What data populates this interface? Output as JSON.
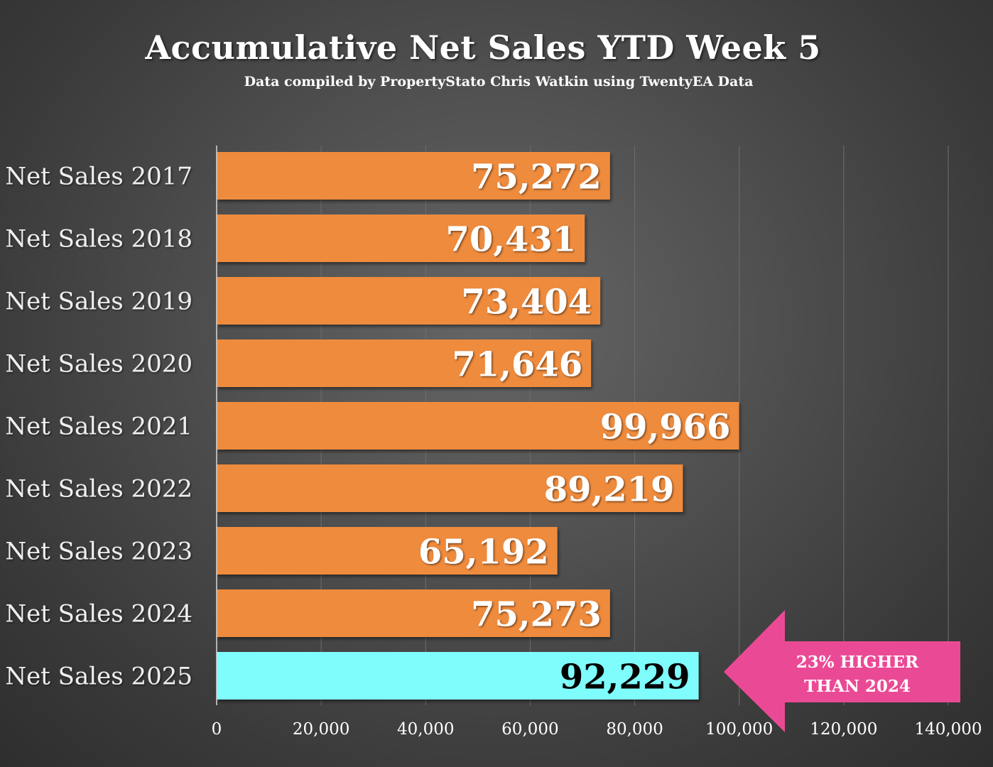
{
  "chart_data": {
    "type": "bar",
    "orientation": "horizontal",
    "title": "Accumulative Net Sales YTD Week 5",
    "subtitle": "Data compiled by PropertyStato Chris Watkin using TwentyEA Data",
    "categories": [
      "Net Sales 2017",
      "Net Sales 2018",
      "Net Sales 2019",
      "Net Sales 2020",
      "Net Sales 2021",
      "Net Sales 2022",
      "Net Sales 2023",
      "Net Sales 2024",
      "Net Sales 2025"
    ],
    "values": [
      75272,
      70431,
      73404,
      71646,
      99966,
      89219,
      65192,
      75273,
      92229
    ],
    "value_labels": [
      "75,272",
      "70,431",
      "73,404",
      "71,646",
      "99,966",
      "89,219",
      "65,192",
      "75,273",
      "92,229"
    ],
    "xlim": [
      0,
      140000
    ],
    "x_ticks": [
      0,
      20000,
      40000,
      60000,
      80000,
      100000,
      120000,
      140000
    ],
    "x_tick_labels": [
      "0",
      "20,000",
      "40,000",
      "60,000",
      "80,000",
      "100,000",
      "120,000",
      "140,000"
    ],
    "grid": true,
    "legend": "none",
    "colors": {
      "bar": "#ef8b3c",
      "highlight_bar": "#7ffcfc",
      "arrow": "#ea4a95",
      "label_text": "#ffffff",
      "highlight_label_text": "#000000"
    },
    "highlight_index": 8,
    "annotation": {
      "lines": [
        "23% HIGHER",
        "THAN 2024"
      ],
      "points_to": "Net Sales 2025"
    }
  }
}
